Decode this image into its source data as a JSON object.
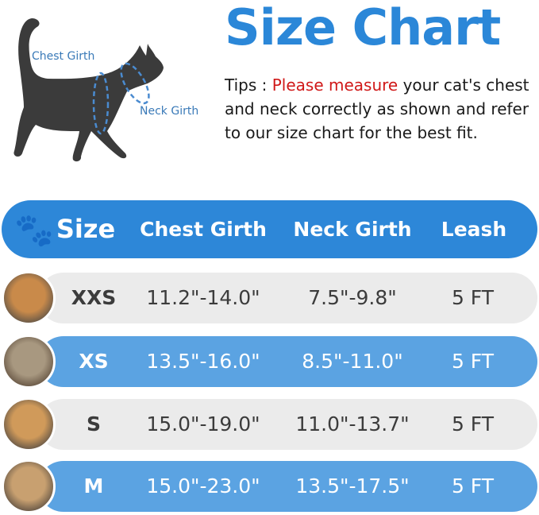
{
  "title": "Size Chart",
  "tips": {
    "prefix": "Tips : ",
    "highlight": "Please measure",
    "rest": " your cat's chest and neck correctly as shown and refer to our size chart for the best fit."
  },
  "diagram": {
    "chest_label": "Chest Girth",
    "neck_label": "Neck Girth"
  },
  "colors": {
    "accent": "#2b87d8",
    "row_blue": "#5ba3e2",
    "row_gray": "#ebebeb",
    "highlight": "#d01818"
  },
  "table": {
    "headers": [
      "Size",
      "Chest Girth",
      "Neck Girth",
      "Leash"
    ],
    "rows": [
      {
        "size": "XXS",
        "chest": "11.2\"-14.0\"",
        "neck": "7.5\"-9.8\"",
        "leash": "5 FT"
      },
      {
        "size": "XS",
        "chest": "13.5\"-16.0\"",
        "neck": "8.5\"-11.0\"",
        "leash": "5 FT"
      },
      {
        "size": "S",
        "chest": "15.0\"-19.0\"",
        "neck": "11.0\"-13.7\"",
        "leash": "5 FT"
      },
      {
        "size": "M",
        "chest": "15.0\"-23.0\"",
        "neck": "13.5\"-17.5\"",
        "leash": "5 FT"
      }
    ]
  }
}
